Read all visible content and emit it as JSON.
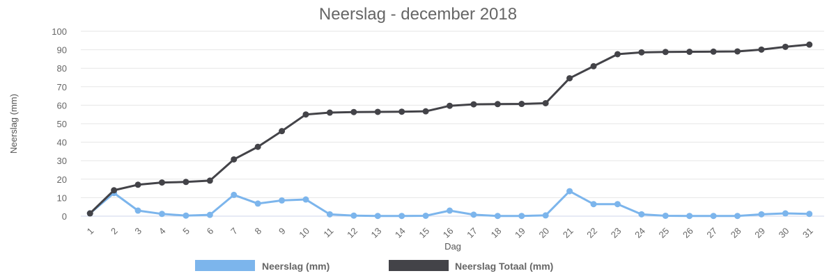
{
  "chart_data": {
    "type": "line",
    "title": "Neerslag - december 2018",
    "xlabel": "Dag",
    "ylabel": "Neerslag (mm)",
    "ylim": [
      0,
      100
    ],
    "yticks": [
      0,
      10,
      20,
      30,
      40,
      50,
      60,
      70,
      80,
      90,
      100
    ],
    "grid": true,
    "legend_position": "bottom",
    "categories": [
      "1",
      "2",
      "3",
      "4",
      "5",
      "6",
      "7",
      "8",
      "9",
      "10",
      "11",
      "12",
      "13",
      "14",
      "15",
      "16",
      "17",
      "18",
      "19",
      "20",
      "21",
      "22",
      "23",
      "24",
      "25",
      "26",
      "27",
      "28",
      "29",
      "30",
      "31"
    ],
    "series": [
      {
        "name": "Neerslag (mm)",
        "color": "#7cb5ec",
        "values": [
          1.5,
          12.5,
          3.0,
          1.2,
          0.3,
          0.7,
          11.5,
          6.8,
          8.5,
          9.0,
          1.0,
          0.3,
          0.1,
          0.1,
          0.2,
          3.0,
          0.8,
          0.1,
          0.1,
          0.4,
          13.5,
          6.5,
          6.5,
          1.0,
          0.2,
          0.1,
          0.1,
          0.1,
          1.0,
          1.5,
          1.2
        ]
      },
      {
        "name": "Neerslag Totaal (mm)",
        "color": "#434348",
        "values": [
          1.5,
          14.0,
          17.0,
          18.2,
          18.5,
          19.2,
          30.7,
          37.5,
          46.0,
          55.0,
          56.0,
          56.3,
          56.4,
          56.5,
          56.7,
          59.7,
          60.5,
          60.6,
          60.7,
          61.1,
          74.6,
          81.1,
          87.6,
          88.6,
          88.8,
          88.9,
          89.0,
          89.1,
          90.1,
          91.6,
          92.8
        ]
      }
    ]
  }
}
